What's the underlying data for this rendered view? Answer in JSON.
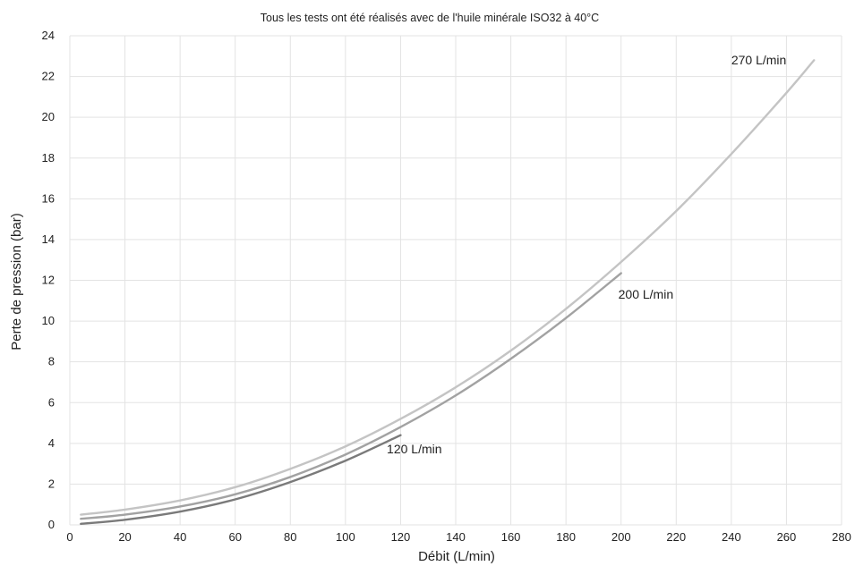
{
  "chart_data": {
    "type": "line",
    "title": "Tous les tests ont été réalisés avec de l'huile minérale ISO32 à 40°C",
    "xlabel": "Débit (L/min)",
    "ylabel": "Perte de pression (bar)",
    "xlim": [
      0,
      280
    ],
    "ylim": [
      0,
      24
    ],
    "xticks": [
      0,
      20,
      40,
      60,
      80,
      100,
      120,
      140,
      160,
      180,
      200,
      220,
      240,
      260,
      280
    ],
    "yticks": [
      0,
      2,
      4,
      6,
      8,
      10,
      12,
      14,
      16,
      18,
      20,
      22,
      24
    ],
    "grid": true,
    "series": [
      {
        "name": "270 L/min",
        "color": "#c4c4c4",
        "x": [
          4,
          20,
          40,
          60,
          80,
          100,
          120,
          140,
          160,
          180,
          200,
          220,
          240,
          260,
          270
        ],
        "y": [
          0.5,
          0.75,
          1.2,
          1.85,
          2.75,
          3.85,
          5.2,
          6.75,
          8.55,
          10.6,
          12.9,
          15.4,
          18.2,
          21.2,
          22.8
        ]
      },
      {
        "name": "200 L/min",
        "color": "#a2a2a2",
        "x": [
          4,
          20,
          40,
          60,
          80,
          100,
          120,
          140,
          160,
          180,
          200
        ],
        "y": [
          0.3,
          0.5,
          0.9,
          1.5,
          2.35,
          3.45,
          4.8,
          6.35,
          8.15,
          10.15,
          12.35
        ]
      },
      {
        "name": "120 L/min",
        "color": "#7a7a7a",
        "x": [
          4,
          20,
          40,
          60,
          80,
          100,
          120
        ],
        "y": [
          0.05,
          0.25,
          0.65,
          1.25,
          2.1,
          3.15,
          4.4
        ]
      }
    ],
    "annotations": [
      {
        "text": "270 L/min",
        "x": 240,
        "y": 22.6
      },
      {
        "text": "200 L/min",
        "x": 199,
        "y": 11.1
      },
      {
        "text": "120 L/min",
        "x": 115,
        "y": 3.5
      }
    ]
  }
}
